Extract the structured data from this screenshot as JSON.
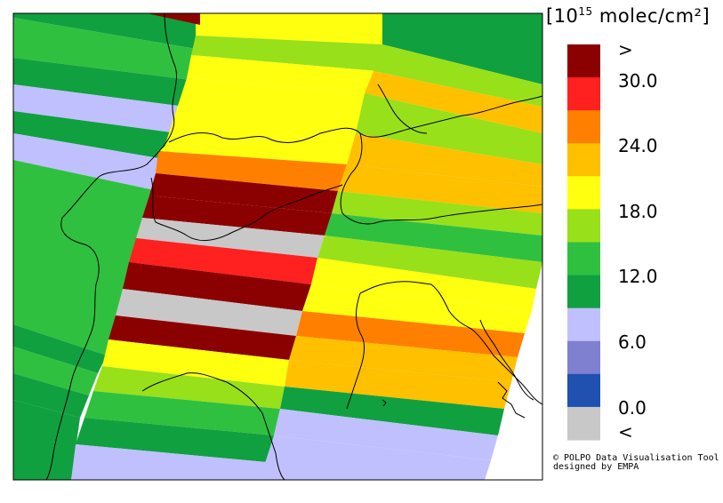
{
  "colorbar": {
    "unit_prefix": "[10",
    "unit_exponent": "15",
    "unit_suffix": " molec/cm²]",
    "over_label": ">",
    "under_label": "<",
    "tick_labels": [
      "30.0",
      "24.0",
      "18.0",
      "12.0",
      "6.0",
      "0.0"
    ],
    "bins": [
      {
        "name": "over",
        "color": "#8b0000"
      },
      {
        "name": "27-30",
        "color": "#ff2020"
      },
      {
        "name": "24-27",
        "color": "#ff8000"
      },
      {
        "name": "21-24",
        "color": "#ffc000"
      },
      {
        "name": "18-21",
        "color": "#ffff10"
      },
      {
        "name": "15-18",
        "color": "#98e01a"
      },
      {
        "name": "12-15",
        "color": "#30c040"
      },
      {
        "name": "9-12",
        "color": "#10a040"
      },
      {
        "name": "6-9",
        "color": "#c0c0ff"
      },
      {
        "name": "3-6",
        "color": "#8080d0"
      },
      {
        "name": "0-3",
        "color": "#2050b0"
      },
      {
        "name": "under",
        "color": "#c8c8c8"
      }
    ]
  },
  "map": {
    "region": "Alps / Northern Italy / Adriatic",
    "quantity": "satellite column density swaths"
  },
  "credit": {
    "line1": "© POLPO Data Visualisation Tool",
    "line2": "designed by EMPA"
  },
  "colors": {
    "border": "#000000",
    "background": "#ffffff"
  }
}
